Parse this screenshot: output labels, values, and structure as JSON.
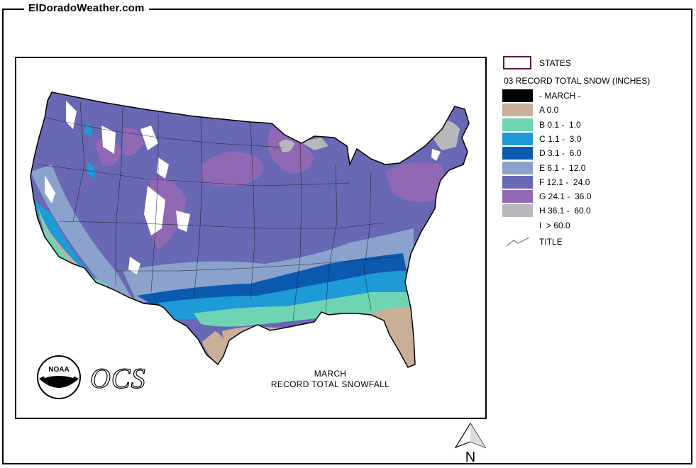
{
  "site": {
    "title": "ElDoradoWeather.com"
  },
  "map": {
    "caption_line1": "MARCH",
    "caption_line2": "RECORD TOTAL SNOWFALL",
    "logo_text": "NOAA",
    "ocs_text": "OCS",
    "north_label": "N"
  },
  "legend": {
    "states_label": "STATES",
    "title": "03 RECORD TOTAL SNOW (INCHES)",
    "items": [
      {
        "label": "- MARCH -",
        "color": "#000000"
      },
      {
        "label": "A 0.0",
        "color": "#c9ae98"
      },
      {
        "label": "B 0.1 -  1.0",
        "color": "#6fd4b4"
      },
      {
        "label": "C 1.1 -  3.0",
        "color": "#1e9ad6"
      },
      {
        "label": "D 3.1 -  6.0",
        "color": "#0b5ab0"
      },
      {
        "label": "E 6.1 -  12.0",
        "color": "#8aa2cc"
      },
      {
        "label": "F 12.1 -  24.0",
        "color": "#6868b4"
      },
      {
        "label": "G 24.1 -  36.0",
        "color": "#9068b4"
      },
      {
        "label": "H 36.1 -  60.0",
        "color": "#b8b8bc"
      },
      {
        "label": "I  > 60.0",
        "color": "#ffffff"
      }
    ],
    "title_entry": "TITLE"
  }
}
